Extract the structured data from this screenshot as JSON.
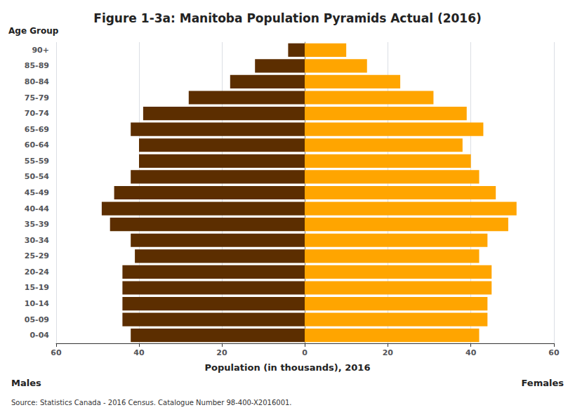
{
  "chart_data": {
    "type": "bar",
    "orientation": "horizontal",
    "title": "Figure 1-3a: Manitoba Population Pyramids Actual (2016)",
    "xlabel": "Population (in thousands), 2016",
    "ylabel": "Age Group",
    "annotations": [
      "Source: Statistics Canada - 2016 Census. Catalogue Number 98-400-X2016001."
    ],
    "categories": [
      "0-04",
      "05-09",
      "10-14",
      "15-19",
      "20-24",
      "25-29",
      "30-34",
      "35-39",
      "40-44",
      "45-49",
      "50-54",
      "55-59",
      "60-64",
      "65-69",
      "70-74",
      "75-79",
      "80-84",
      "85-89",
      "90+"
    ],
    "series": [
      {
        "name": "Males",
        "color": "#5C2E00",
        "values": [
          42,
          44,
          44,
          44,
          44,
          41,
          42,
          47,
          49,
          46,
          42,
          40,
          40,
          42,
          39,
          28,
          18,
          12,
          4
        ]
      },
      {
        "name": "Females",
        "color": "#FFA500",
        "values": [
          42,
          44,
          44,
          45,
          45,
          42,
          44,
          49,
          51,
          46,
          42,
          40,
          38,
          43,
          39,
          31,
          23,
          15,
          10
        ]
      }
    ],
    "xlim": [
      0,
      60
    ],
    "xticks": [
      0,
      20,
      40,
      60
    ],
    "grid": true
  }
}
